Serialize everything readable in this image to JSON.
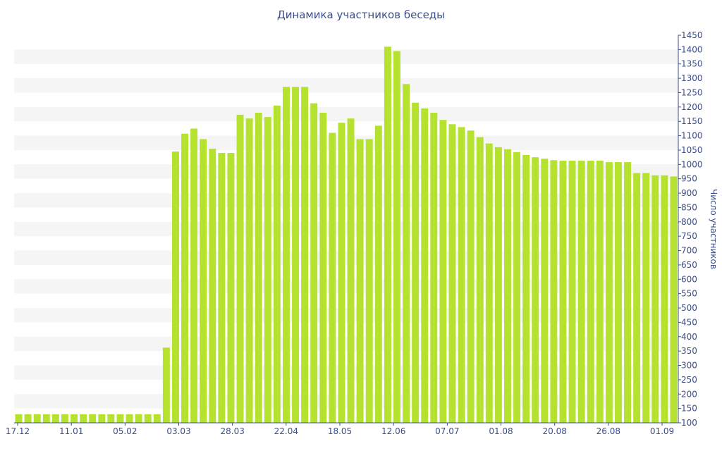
{
  "chart_data": {
    "type": "bar",
    "title": "Динамика участников беседы",
    "xlabel": "",
    "ylabel": "Число участников",
    "ylim": [
      100,
      1450
    ],
    "y_tick_step": 50,
    "y_axis_side": "right",
    "grid": "alternating horizontal bands",
    "colors": {
      "bar": "#b5e12f",
      "band": "#f5f5f5",
      "text": "#3a4e8c",
      "axis": "#3a4e8c"
    },
    "x_tick_labels": [
      "17.12",
      "11.01",
      "05.02",
      "03.03",
      "28.03",
      "22.04",
      "18.05",
      "12.06",
      "07.07",
      "01.08",
      "20.08",
      "26.08",
      "01.09"
    ],
    "values": [
      130,
      130,
      130,
      130,
      130,
      130,
      130,
      130,
      130,
      130,
      130,
      130,
      130,
      130,
      130,
      130,
      362,
      1045,
      1107,
      1125,
      1088,
      1055,
      1040,
      1040,
      1173,
      1160,
      1180,
      1165,
      1205,
      1270,
      1270,
      1270,
      1213,
      1180,
      1110,
      1145,
      1160,
      1088,
      1088,
      1135,
      1410,
      1395,
      1280,
      1215,
      1195,
      1180,
      1155,
      1140,
      1130,
      1118,
      1095,
      1073,
      1060,
      1053,
      1043,
      1033,
      1025,
      1020,
      1015,
      1013,
      1013,
      1013,
      1013,
      1013,
      1008,
      1008,
      1008,
      970,
      970,
      962,
      962,
      958
    ]
  }
}
